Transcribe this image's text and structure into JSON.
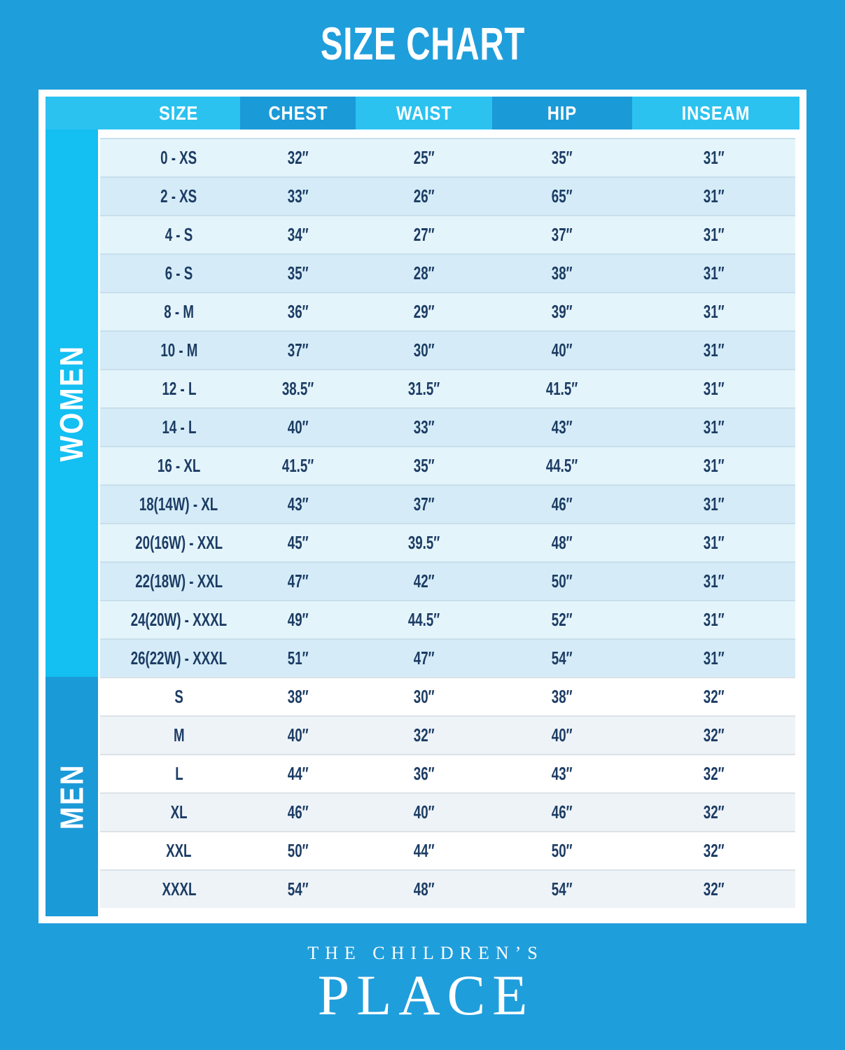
{
  "title": "SIZE CHART",
  "chart_data": {
    "type": "table",
    "columns": [
      "SIZE",
      "CHEST",
      "WAIST",
      "HIP",
      "INSEAM"
    ],
    "sections": [
      {
        "label": "WOMEN",
        "rows": [
          [
            "0 - XS",
            "32″",
            "25″",
            "35″",
            "31″"
          ],
          [
            "2 - XS",
            "33″",
            "26″",
            "65″",
            "31″"
          ],
          [
            "4 - S",
            "34″",
            "27″",
            "37″",
            "31″"
          ],
          [
            "6 - S",
            "35″",
            "28″",
            "38″",
            "31″"
          ],
          [
            "8 - M",
            "36″",
            "29″",
            "39″",
            "31″"
          ],
          [
            "10 - M",
            "37″",
            "30″",
            "40″",
            "31″"
          ],
          [
            "12 - L",
            "38.5″",
            "31.5″",
            "41.5″",
            "31″"
          ],
          [
            "14 - L",
            "40″",
            "33″",
            "43″",
            "31″"
          ],
          [
            "16 - XL",
            "41.5″",
            "35″",
            "44.5″",
            "31″"
          ],
          [
            "18(14W) - XL",
            "43″",
            "37″",
            "46″",
            "31″"
          ],
          [
            "20(16W) - XXL",
            "45″",
            "39.5″",
            "48″",
            "31″"
          ],
          [
            "22(18W) - XXL",
            "47″",
            "42″",
            "50″",
            "31″"
          ],
          [
            "24(20W) - XXXL",
            "49″",
            "44.5″",
            "52″",
            "31″"
          ],
          [
            "26(22W) - XXXL",
            "51″",
            "47″",
            "54″",
            "31″"
          ]
        ]
      },
      {
        "label": "MEN",
        "rows": [
          [
            "S",
            "38″",
            "30″",
            "38″",
            "32″"
          ],
          [
            "M",
            "40″",
            "32″",
            "40″",
            "32″"
          ],
          [
            "L",
            "44″",
            "36″",
            "43″",
            "32″"
          ],
          [
            "XL",
            "46″",
            "40″",
            "46″",
            "32″"
          ],
          [
            "XXL",
            "50″",
            "44″",
            "50″",
            "32″"
          ],
          [
            "XXXL",
            "54″",
            "48″",
            "54″",
            "32″"
          ]
        ]
      }
    ]
  },
  "footer": {
    "brand_line1": "THE CHILDREN’S",
    "brand_line2": "PLACE"
  },
  "colors": {
    "page_background": "#1F9EDC",
    "header_light": "#2BC2F0",
    "header_dark": "#1B9AD8",
    "women_sidebar": "#14BFF2",
    "men_sidebar": "#1B9AD8",
    "women_row_light": "#E4F4FB",
    "women_row_dark": "#D5ECF8",
    "men_row_light": "#FFFFFF",
    "men_row_dark": "#EEF3F8",
    "cell_text": "#1C3C64",
    "title_text": "#FFFFFF"
  }
}
